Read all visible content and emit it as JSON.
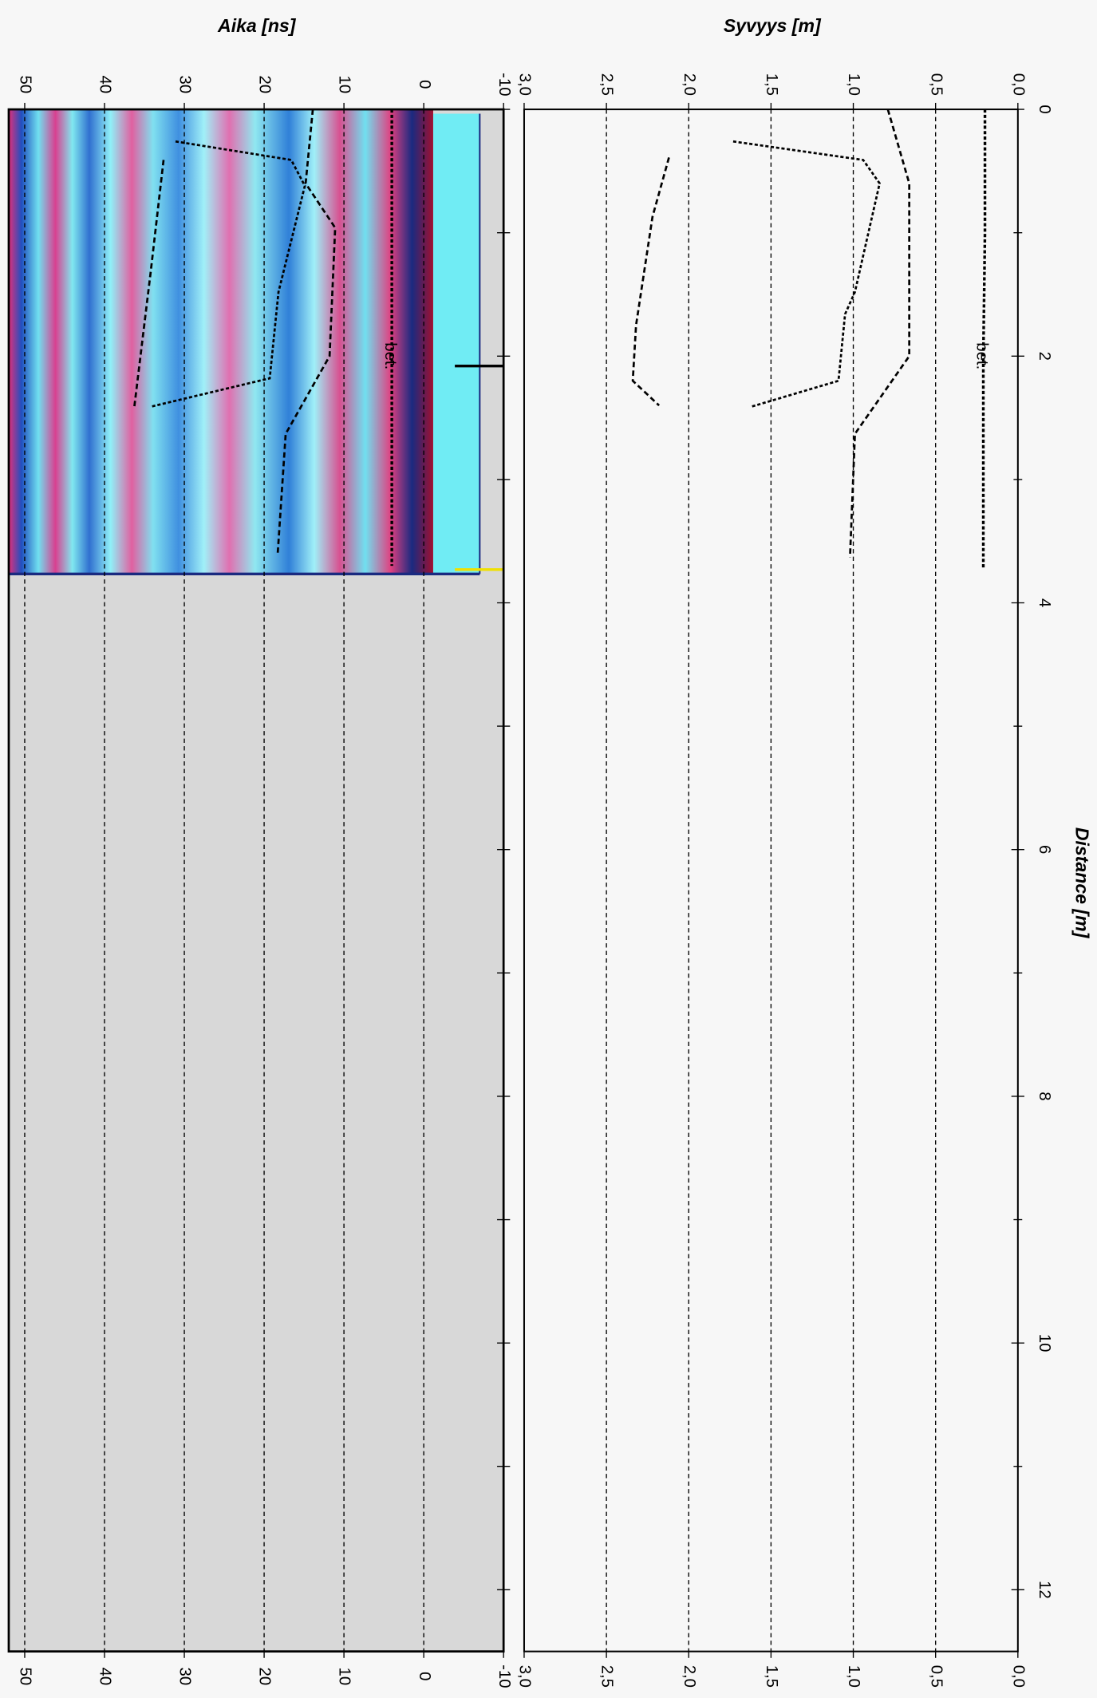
{
  "chart_data": [
    {
      "type": "line",
      "title": "Aika [ns]",
      "xlim": [
        0,
        12.5
      ],
      "xticks": [
        0,
        1,
        2,
        3,
        4,
        5,
        6,
        7,
        8,
        9,
        10,
        11,
        12
      ],
      "ylim": [
        -10,
        52
      ],
      "yticks": [
        -10,
        0,
        10,
        20,
        30,
        40,
        50
      ],
      "grid": true,
      "annotation": "bet.",
      "series": [
        {
          "name": "bet.",
          "color": "#000000",
          "x": [
            0,
            1,
            2,
            3,
            3.7
          ],
          "values": [
            4,
            4,
            4,
            4,
            4
          ]
        },
        {
          "color": "#000000",
          "x": [
            0,
            0.6,
            0.96,
            2.0,
            2.63,
            3.6
          ],
          "values": [
            13.9,
            14.8,
            11.1,
            11.8,
            17.3,
            18.3
          ]
        },
        {
          "color": "#000000",
          "x": [
            0.26,
            0.41,
            0.62,
            1.48,
            2.18,
            2.41
          ],
          "values": [
            31.1,
            16.6,
            14.9,
            18.2,
            19.3,
            34.2
          ]
        },
        {
          "color": "#000000",
          "x": [
            0.41,
            1.31,
            2.43
          ],
          "values": [
            32.6,
            34.2,
            36.3
          ]
        }
      ]
    },
    {
      "type": "line",
      "title": "Syvyys [m]",
      "xlabel": "Distance [m]",
      "xlim": [
        0,
        12.5
      ],
      "xticks": [
        0,
        2,
        4,
        6,
        8,
        10,
        12
      ],
      "xminorticks": [
        1,
        3,
        5,
        7,
        9,
        11
      ],
      "ylim": [
        0,
        3
      ],
      "yticks": [
        {
          "value": 0,
          "label": "0,0"
        },
        {
          "value": 0.5,
          "label": "0,5"
        },
        {
          "value": 1,
          "label": "1,0"
        },
        {
          "value": 1.5,
          "label": "1,5"
        },
        {
          "value": 2,
          "label": "2,0"
        },
        {
          "value": 2.5,
          "label": "2,5"
        },
        {
          "value": 3,
          "label": "3,0"
        }
      ],
      "grid": true,
      "annotation": "bet.",
      "series": [
        {
          "name": "bet.",
          "color": "#000000",
          "x": [
            0,
            1,
            2,
            3,
            3.72
          ],
          "values": [
            0.2,
            0.2,
            0.21,
            0.21,
            0.21
          ]
        },
        {
          "color": "#000000",
          "x": [
            0,
            0.6,
            2.0,
            2.63,
            3.63
          ],
          "values": [
            0.79,
            0.66,
            0.66,
            0.99,
            1.02
          ]
        },
        {
          "color": "#000000",
          "x": [
            0.26,
            0.41,
            0.6,
            1.48,
            1.66,
            2.2,
            2.41
          ],
          "values": [
            1.73,
            0.94,
            0.84,
            0.99,
            1.05,
            1.09,
            1.62
          ]
        },
        {
          "color": "#000000",
          "x": [
            0.39,
            0.87,
            1.75,
            2.2,
            2.4
          ],
          "values": [
            2.12,
            2.22,
            2.32,
            2.34,
            2.18
          ]
        }
      ]
    }
  ]
}
